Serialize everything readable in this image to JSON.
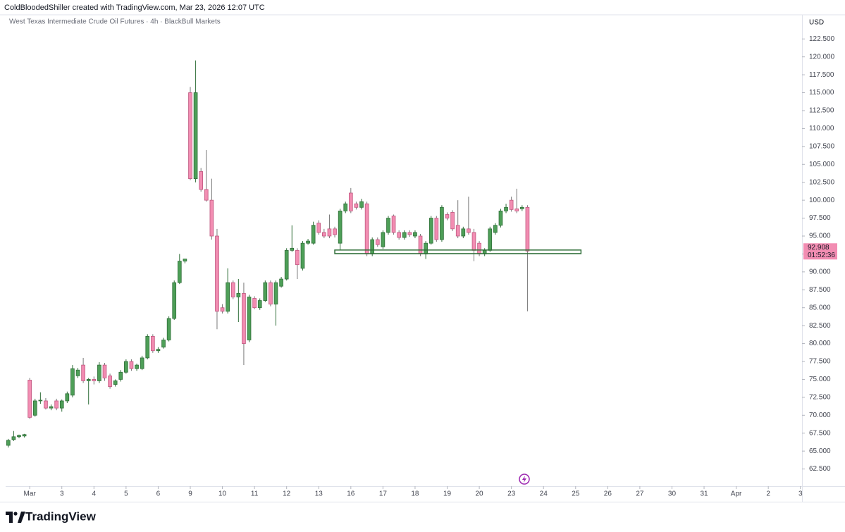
{
  "chart_data": {
    "type": "candlestick",
    "attribution": "ColdBloodedShiller created with TradingView.com, Mar 23, 2026 12:07 UTC",
    "title": "West Texas Intermediate Crude Oil Futures · 4h · BlackBull Markets",
    "currency": "USD",
    "brand": "TradingView",
    "x": [
      -4,
      -3,
      -2,
      -1,
      0,
      1,
      2,
      3,
      4,
      5,
      6,
      7,
      8,
      9,
      10,
      11,
      12,
      13,
      14,
      15,
      16,
      17,
      18,
      19,
      20,
      21,
      22,
      23,
      24,
      25,
      26,
      27,
      28,
      29,
      30,
      31,
      32,
      33,
      34,
      35,
      36,
      37,
      38,
      39,
      40,
      41,
      42,
      43,
      44,
      45,
      46,
      47,
      48,
      49,
      50,
      51,
      52,
      53,
      54,
      55,
      56,
      57,
      58,
      59,
      60,
      61,
      62,
      63,
      64,
      65,
      66,
      67,
      68,
      69,
      70,
      71,
      72,
      73,
      74,
      75,
      76,
      77,
      78,
      79,
      80,
      81,
      82,
      83,
      84,
      85,
      86,
      87,
      88,
      89,
      90,
      91,
      92,
      93
    ],
    "open": [
      65.8,
      66.6,
      67.0,
      67.1,
      74.9,
      70.0,
      72.0,
      72.0,
      71.0,
      72.0,
      71.0,
      72.0,
      72.8,
      75.5,
      77.0,
      74.8,
      75.0,
      74.8,
      77.0,
      75.5,
      74.3,
      75.0,
      76.0,
      77.5,
      76.5,
      76.5,
      78.0,
      81.0,
      79.0,
      79.5,
      80.5,
      83.5,
      88.5,
      91.5,
      115.0,
      103.0,
      104.0,
      101.5,
      100.0,
      95.0,
      85.0,
      84.5,
      88.5,
      86.5,
      87.0,
      80.5,
      86.3,
      85.0,
      86.0,
      88.5,
      85.5,
      88.0,
      89.0,
      93.0,
      93.0,
      90.5,
      94.0,
      94.0,
      96.8,
      95.5,
      96.0,
      96.0,
      94.0,
      98.5,
      101.0,
      99.5,
      99.0,
      99.5,
      92.5,
      94.5,
      93.5,
      95.5,
      97.8,
      95.5,
      94.8,
      95.5,
      95.0,
      95.0,
      92.5,
      94.0,
      97.5,
      94.5,
      98.0,
      98.3,
      96.5,
      95.0,
      96.0,
      95.5,
      94.0,
      92.5,
      93.0,
      95.5,
      96.5,
      98.5,
      100.0,
      98.8,
      98.8,
      99.0
    ],
    "high": [
      66.7,
      67.8,
      67.3,
      67.4,
      75.2,
      72.3,
      73.2,
      72.4,
      71.5,
      72.3,
      72.2,
      73.3,
      77.0,
      76.6,
      78.0,
      75.2,
      75.4,
      77.4,
      77.3,
      75.8,
      75.0,
      76.3,
      77.8,
      77.8,
      77.2,
      78.3,
      81.3,
      81.3,
      79.5,
      80.8,
      83.8,
      88.8,
      92.5,
      91.8,
      115.8,
      119.5,
      104.5,
      107.0,
      103.0,
      96.0,
      85.5,
      90.5,
      88.8,
      89.0,
      88.5,
      86.8,
      86.6,
      86.3,
      88.8,
      88.8,
      88.8,
      89.3,
      93.3,
      96.5,
      93.3,
      94.3,
      94.6,
      97.0,
      97.2,
      96.0,
      98.0,
      96.3,
      98.8,
      99.8,
      101.7,
      99.8,
      100.2,
      99.8,
      94.8,
      94.8,
      95.8,
      97.8,
      98.0,
      95.8,
      95.8,
      95.8,
      95.8,
      95.3,
      94.3,
      97.8,
      97.8,
      99.3,
      98.3,
      98.6,
      100.0,
      96.3,
      100.5,
      96.0,
      94.3,
      93.3,
      96.3,
      96.8,
      98.8,
      99.5,
      100.5,
      101.6,
      99.3,
      99.3
    ],
    "low": [
      65.5,
      66.4,
      66.8,
      66.9,
      69.5,
      69.8,
      71.6,
      70.8,
      70.7,
      70.7,
      70.5,
      71.7,
      72.5,
      75.2,
      74.5,
      71.5,
      74.3,
      74.5,
      74.8,
      73.7,
      74.0,
      74.7,
      75.8,
      76.2,
      76.2,
      76.3,
      77.8,
      78.7,
      78.7,
      79.3,
      80.3,
      83.3,
      88.3,
      91.2,
      102.8,
      102.5,
      101.2,
      99.8,
      94.5,
      82.0,
      84.2,
      84.2,
      86.2,
      83.0,
      77.0,
      80.2,
      84.8,
      84.7,
      85.8,
      85.2,
      82.5,
      87.8,
      88.8,
      92.8,
      89.0,
      90.2,
      93.8,
      93.8,
      95.2,
      94.7,
      94.7,
      94.8,
      93.0,
      98.2,
      98.2,
      98.7,
      98.7,
      92.2,
      92.2,
      93.5,
      93.2,
      95.2,
      95.2,
      94.5,
      94.5,
      94.9,
      94.7,
      92.2,
      91.8,
      93.8,
      94.2,
      94.2,
      97.2,
      95.7,
      94.7,
      94.7,
      95.2,
      91.5,
      92.2,
      92.2,
      92.8,
      95.2,
      96.2,
      98.2,
      98.4,
      98.2,
      98.5,
      84.5
    ],
    "close": [
      66.5,
      67.0,
      67.2,
      67.3,
      69.7,
      72.0,
      72.1,
      71.0,
      71.2,
      71.0,
      72.0,
      73.0,
      76.5,
      76.3,
      74.8,
      75.0,
      74.8,
      77.0,
      75.2,
      74.0,
      74.8,
      76.0,
      77.5,
      76.5,
      77.0,
      78.0,
      81.0,
      79.0,
      79.2,
      80.5,
      83.5,
      88.5,
      91.5,
      91.8,
      103.0,
      115.0,
      101.5,
      100.0,
      95.0,
      84.5,
      84.5,
      88.5,
      86.5,
      87.0,
      80.0,
      86.5,
      85.0,
      86.0,
      88.5,
      85.5,
      88.5,
      89.0,
      93.0,
      93.3,
      91.0,
      94.0,
      94.3,
      96.5,
      95.5,
      95.0,
      95.0,
      95.2,
      98.5,
      99.5,
      98.5,
      99.0,
      99.8,
      92.5,
      94.5,
      93.8,
      95.5,
      97.5,
      95.5,
      94.8,
      95.5,
      95.2,
      95.5,
      92.5,
      94.0,
      97.5,
      94.5,
      99.0,
      97.5,
      96.0,
      95.0,
      96.0,
      95.5,
      93.0,
      92.5,
      93.0,
      96.0,
      96.5,
      98.5,
      99.0,
      98.7,
      98.5,
      99.0,
      92.908
    ],
    "up_color": "#4e9f58",
    "up_border": "#2f6e38",
    "down_color": "#f28db2",
    "down_border": "#c0577f",
    "last_price": 92.908,
    "countdown": "01:52:36",
    "last_price_color": "#f28db2",
    "zone": {
      "x": [
        57,
        103
      ],
      "y": [
        92.55,
        93.05
      ],
      "color": "#2f6e38"
    },
    "xlim": [
      -4.5,
      144.3
    ],
    "ylim": [
      60.1,
      124.0
    ],
    "grid": false,
    "xticks": [
      {
        "value": 0,
        "label": "Mar"
      },
      {
        "value": 6,
        "label": "3"
      },
      {
        "value": 12,
        "label": "4"
      },
      {
        "value": 18,
        "label": "5"
      },
      {
        "value": 24,
        "label": "6"
      },
      {
        "value": 30,
        "label": "9"
      },
      {
        "value": 36,
        "label": "10"
      },
      {
        "value": 42,
        "label": "11"
      },
      {
        "value": 48,
        "label": "12"
      },
      {
        "value": 54,
        "label": "13"
      },
      {
        "value": 60,
        "label": "16"
      },
      {
        "value": 66,
        "label": "17"
      },
      {
        "value": 72,
        "label": "18"
      },
      {
        "value": 78,
        "label": "19"
      },
      {
        "value": 84,
        "label": "20"
      },
      {
        "value": 90,
        "label": "23"
      },
      {
        "value": 96,
        "label": "24"
      },
      {
        "value": 102,
        "label": "25"
      },
      {
        "value": 108,
        "label": "26"
      },
      {
        "value": 114,
        "label": "27"
      },
      {
        "value": 120,
        "label": "30"
      },
      {
        "value": 126,
        "label": "31"
      },
      {
        "value": 132,
        "label": "Apr"
      },
      {
        "value": 138,
        "label": "2"
      },
      {
        "value": 144,
        "label": "3"
      }
    ],
    "yticks": [
      {
        "value": 62.5,
        "label": "62.500"
      },
      {
        "value": 65,
        "label": "65.000"
      },
      {
        "value": 67.5,
        "label": "67.500"
      },
      {
        "value": 70,
        "label": "70.000"
      },
      {
        "value": 72.5,
        "label": "72.500"
      },
      {
        "value": 75,
        "label": "75.000"
      },
      {
        "value": 77.5,
        "label": "77.500"
      },
      {
        "value": 80,
        "label": "80.000"
      },
      {
        "value": 82.5,
        "label": "82.500"
      },
      {
        "value": 85,
        "label": "85.000"
      },
      {
        "value": 87.5,
        "label": "87.500"
      },
      {
        "value": 90,
        "label": "90.000"
      },
      {
        "value": 92.5,
        "label": "92.500"
      },
      {
        "value": 95,
        "label": "95.000"
      },
      {
        "value": 97.5,
        "label": "97.500"
      },
      {
        "value": 100,
        "label": "100.000"
      },
      {
        "value": 102.5,
        "label": "102.500"
      },
      {
        "value": 105,
        "label": "105.000"
      },
      {
        "value": 107.5,
        "label": "107.500"
      },
      {
        "value": 110,
        "label": "110.000"
      },
      {
        "value": 112.5,
        "label": "112.500"
      },
      {
        "value": 115,
        "label": "115.000"
      },
      {
        "value": 117.5,
        "label": "117.500"
      },
      {
        "value": 120,
        "label": "120.000"
      },
      {
        "value": 122.5,
        "label": "122.500"
      }
    ]
  }
}
